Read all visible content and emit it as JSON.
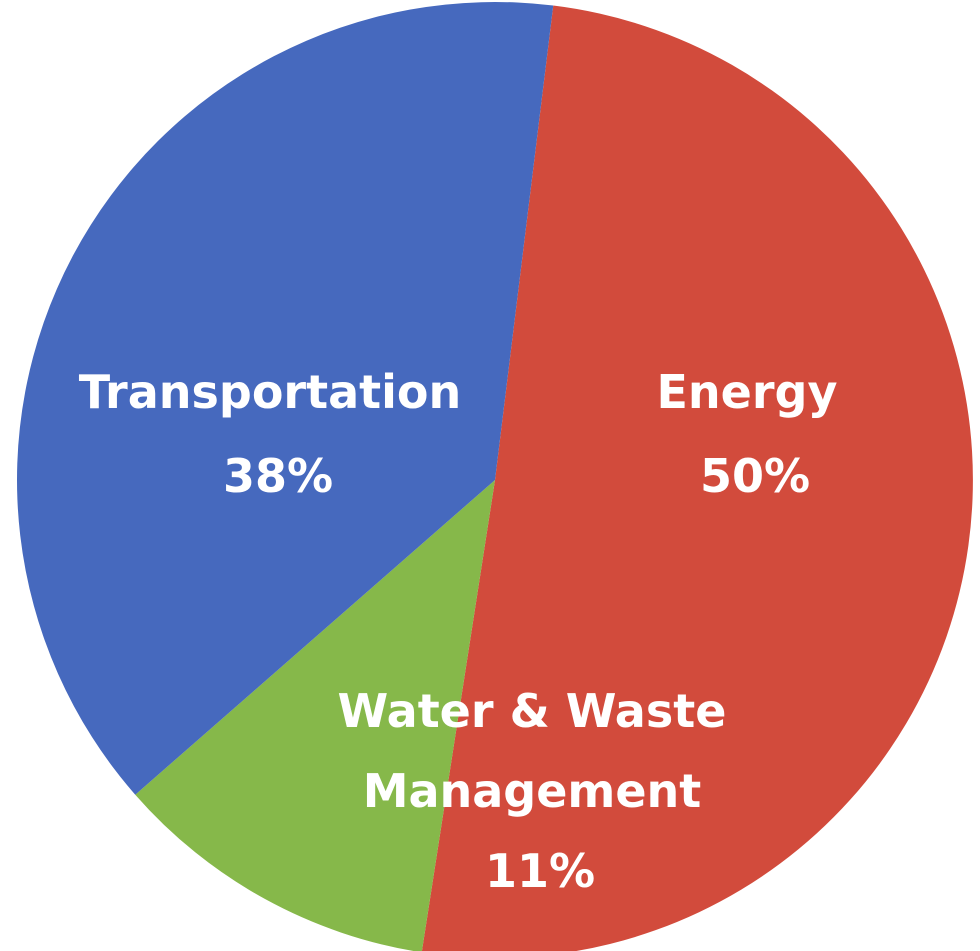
{
  "chart_data": {
    "type": "pie",
    "title": "",
    "legend": "none",
    "slices": [
      {
        "name": "Energy",
        "value": 50,
        "value_label": "50%",
        "color": "#d24b3c"
      },
      {
        "name": "Water & Waste Management",
        "value": 11,
        "value_label": "11%",
        "color": "#86b84a"
      },
      {
        "name": "Transportation",
        "value": 38,
        "value_label": "38%",
        "color": "#4669be"
      }
    ]
  }
}
